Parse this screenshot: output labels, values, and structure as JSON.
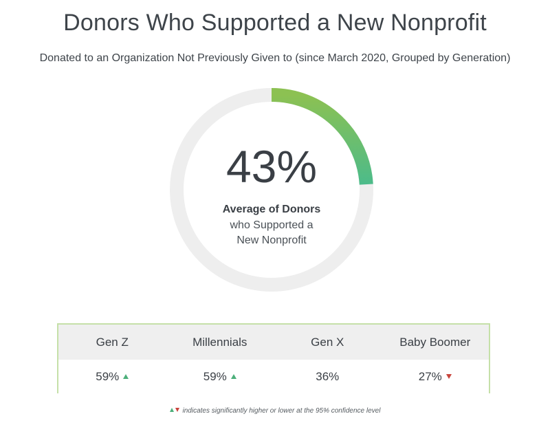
{
  "chart_data": {
    "type": "pie",
    "title": "Donors Who Supported a New Nonprofit",
    "subtitle": "Donated to an Organization Not Previously Given to (since March 2020, Grouped by Generation)",
    "center_value": 43,
    "center_value_label": "43%",
    "center_label_bold": "Average of Donors",
    "center_label_line2": "who Supported a",
    "center_label_line3": "New Nonprofit",
    "colors": {
      "arc_start": "#8cc152",
      "arc_end": "#4cbb8a",
      "track": "#eeeeee",
      "up": "#4caf7a",
      "down": "#c8443c"
    },
    "generations": [
      {
        "name": "Gen Z",
        "value": 59,
        "label": "59%",
        "significance": "higher"
      },
      {
        "name": "Millennials",
        "value": 59,
        "label": "59%",
        "significance": "higher"
      },
      {
        "name": "Gen X",
        "value": 36,
        "label": "36%",
        "significance": "none"
      },
      {
        "name": "Baby Boomer",
        "value": 27,
        "label": "27%",
        "significance": "lower"
      }
    ],
    "footnote": "indicates significantly higher or lower at the 95% confidence level"
  }
}
